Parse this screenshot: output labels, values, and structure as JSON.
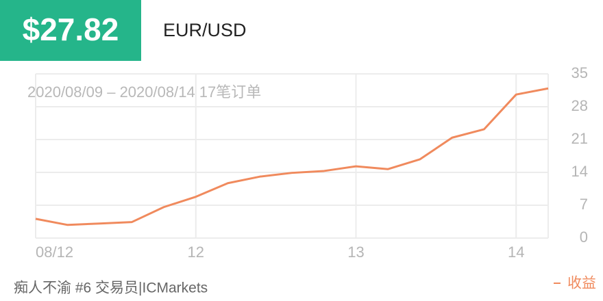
{
  "price": "$27.82",
  "pair": "EUR/USD",
  "footer": "痴人不渝 #6 交易员|ICMarkets",
  "chart_data": {
    "type": "line",
    "subtitle": "2020/08/09 – 2020/08/14 17笔订单",
    "categories": [
      "08/12",
      null,
      null,
      null,
      null,
      "12",
      null,
      null,
      null,
      null,
      "13",
      null,
      null,
      null,
      null,
      "14",
      null
    ],
    "series": [
      {
        "name": "收益",
        "color": "#f08a5d",
        "values": [
          4.1,
          2.8,
          3.1,
          3.4,
          6.6,
          8.8,
          11.7,
          13.1,
          13.9,
          14.3,
          15.3,
          14.7,
          16.8,
          21.4,
          23.2,
          30.6,
          31.9
        ]
      }
    ],
    "ylim": [
      0,
      35
    ],
    "yticks": [
      0,
      7,
      14,
      21,
      28,
      35
    ],
    "grid": true
  }
}
